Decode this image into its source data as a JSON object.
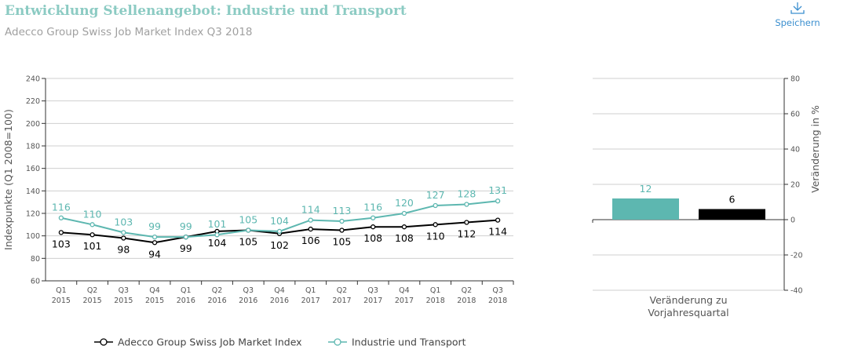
{
  "header": {
    "title": "Entwicklung Stellenangebot: Industrie und Transport",
    "subtitle": "Adecco Group Swiss Job Market Index Q3 2018",
    "save_label": "Speichern",
    "save_icon": "download-icon"
  },
  "colors": {
    "index": "#000000",
    "industrie": "#5db7b0",
    "title": "#8ccbc3",
    "save": "#3b8fcf"
  },
  "chart_data": [
    {
      "type": "line",
      "ylabel": "Indexpunkte (Q1 2008=100)",
      "ylim": [
        60,
        240
      ],
      "yticks": [
        60,
        80,
        100,
        120,
        140,
        160,
        180,
        200,
        220,
        240
      ],
      "grid": true,
      "categories": [
        [
          "Q1",
          "2015"
        ],
        [
          "Q2",
          "2015"
        ],
        [
          "Q3",
          "2015"
        ],
        [
          "Q4",
          "2015"
        ],
        [
          "Q1",
          "2016"
        ],
        [
          "Q2",
          "2016"
        ],
        [
          "Q3",
          "2016"
        ],
        [
          "Q4",
          "2016"
        ],
        [
          "Q1",
          "2017"
        ],
        [
          "Q2",
          "2017"
        ],
        [
          "Q3",
          "2017"
        ],
        [
          "Q4",
          "2017"
        ],
        [
          "Q1",
          "2018"
        ],
        [
          "Q2",
          "2018"
        ],
        [
          "Q3",
          "2018"
        ]
      ],
      "series": [
        {
          "name": "Adecco Group Swiss Job Market Index",
          "color": "#000000",
          "values": [
            103,
            101,
            98,
            94,
            99,
            104,
            105,
            102,
            106,
            105,
            108,
            108,
            110,
            112,
            114
          ]
        },
        {
          "name": "Industrie und Transport",
          "color": "#5db7b0",
          "values": [
            116,
            110,
            103,
            99,
            99,
            101,
            105,
            104,
            114,
            113,
            116,
            120,
            127,
            128,
            131
          ]
        }
      ],
      "legend": "bottom"
    },
    {
      "type": "bar",
      "category": [
        "Veränderung zu",
        "Vorjahresquartal"
      ],
      "ylabel": "Veränderung in %",
      "ylim": [
        -40,
        80
      ],
      "yticks": [
        -40,
        -20,
        0,
        20,
        40,
        60,
        80
      ],
      "grid": true,
      "bars": [
        {
          "value": 12,
          "color": "#5db7b0"
        },
        {
          "value": 6,
          "color": "#000000"
        }
      ]
    }
  ]
}
